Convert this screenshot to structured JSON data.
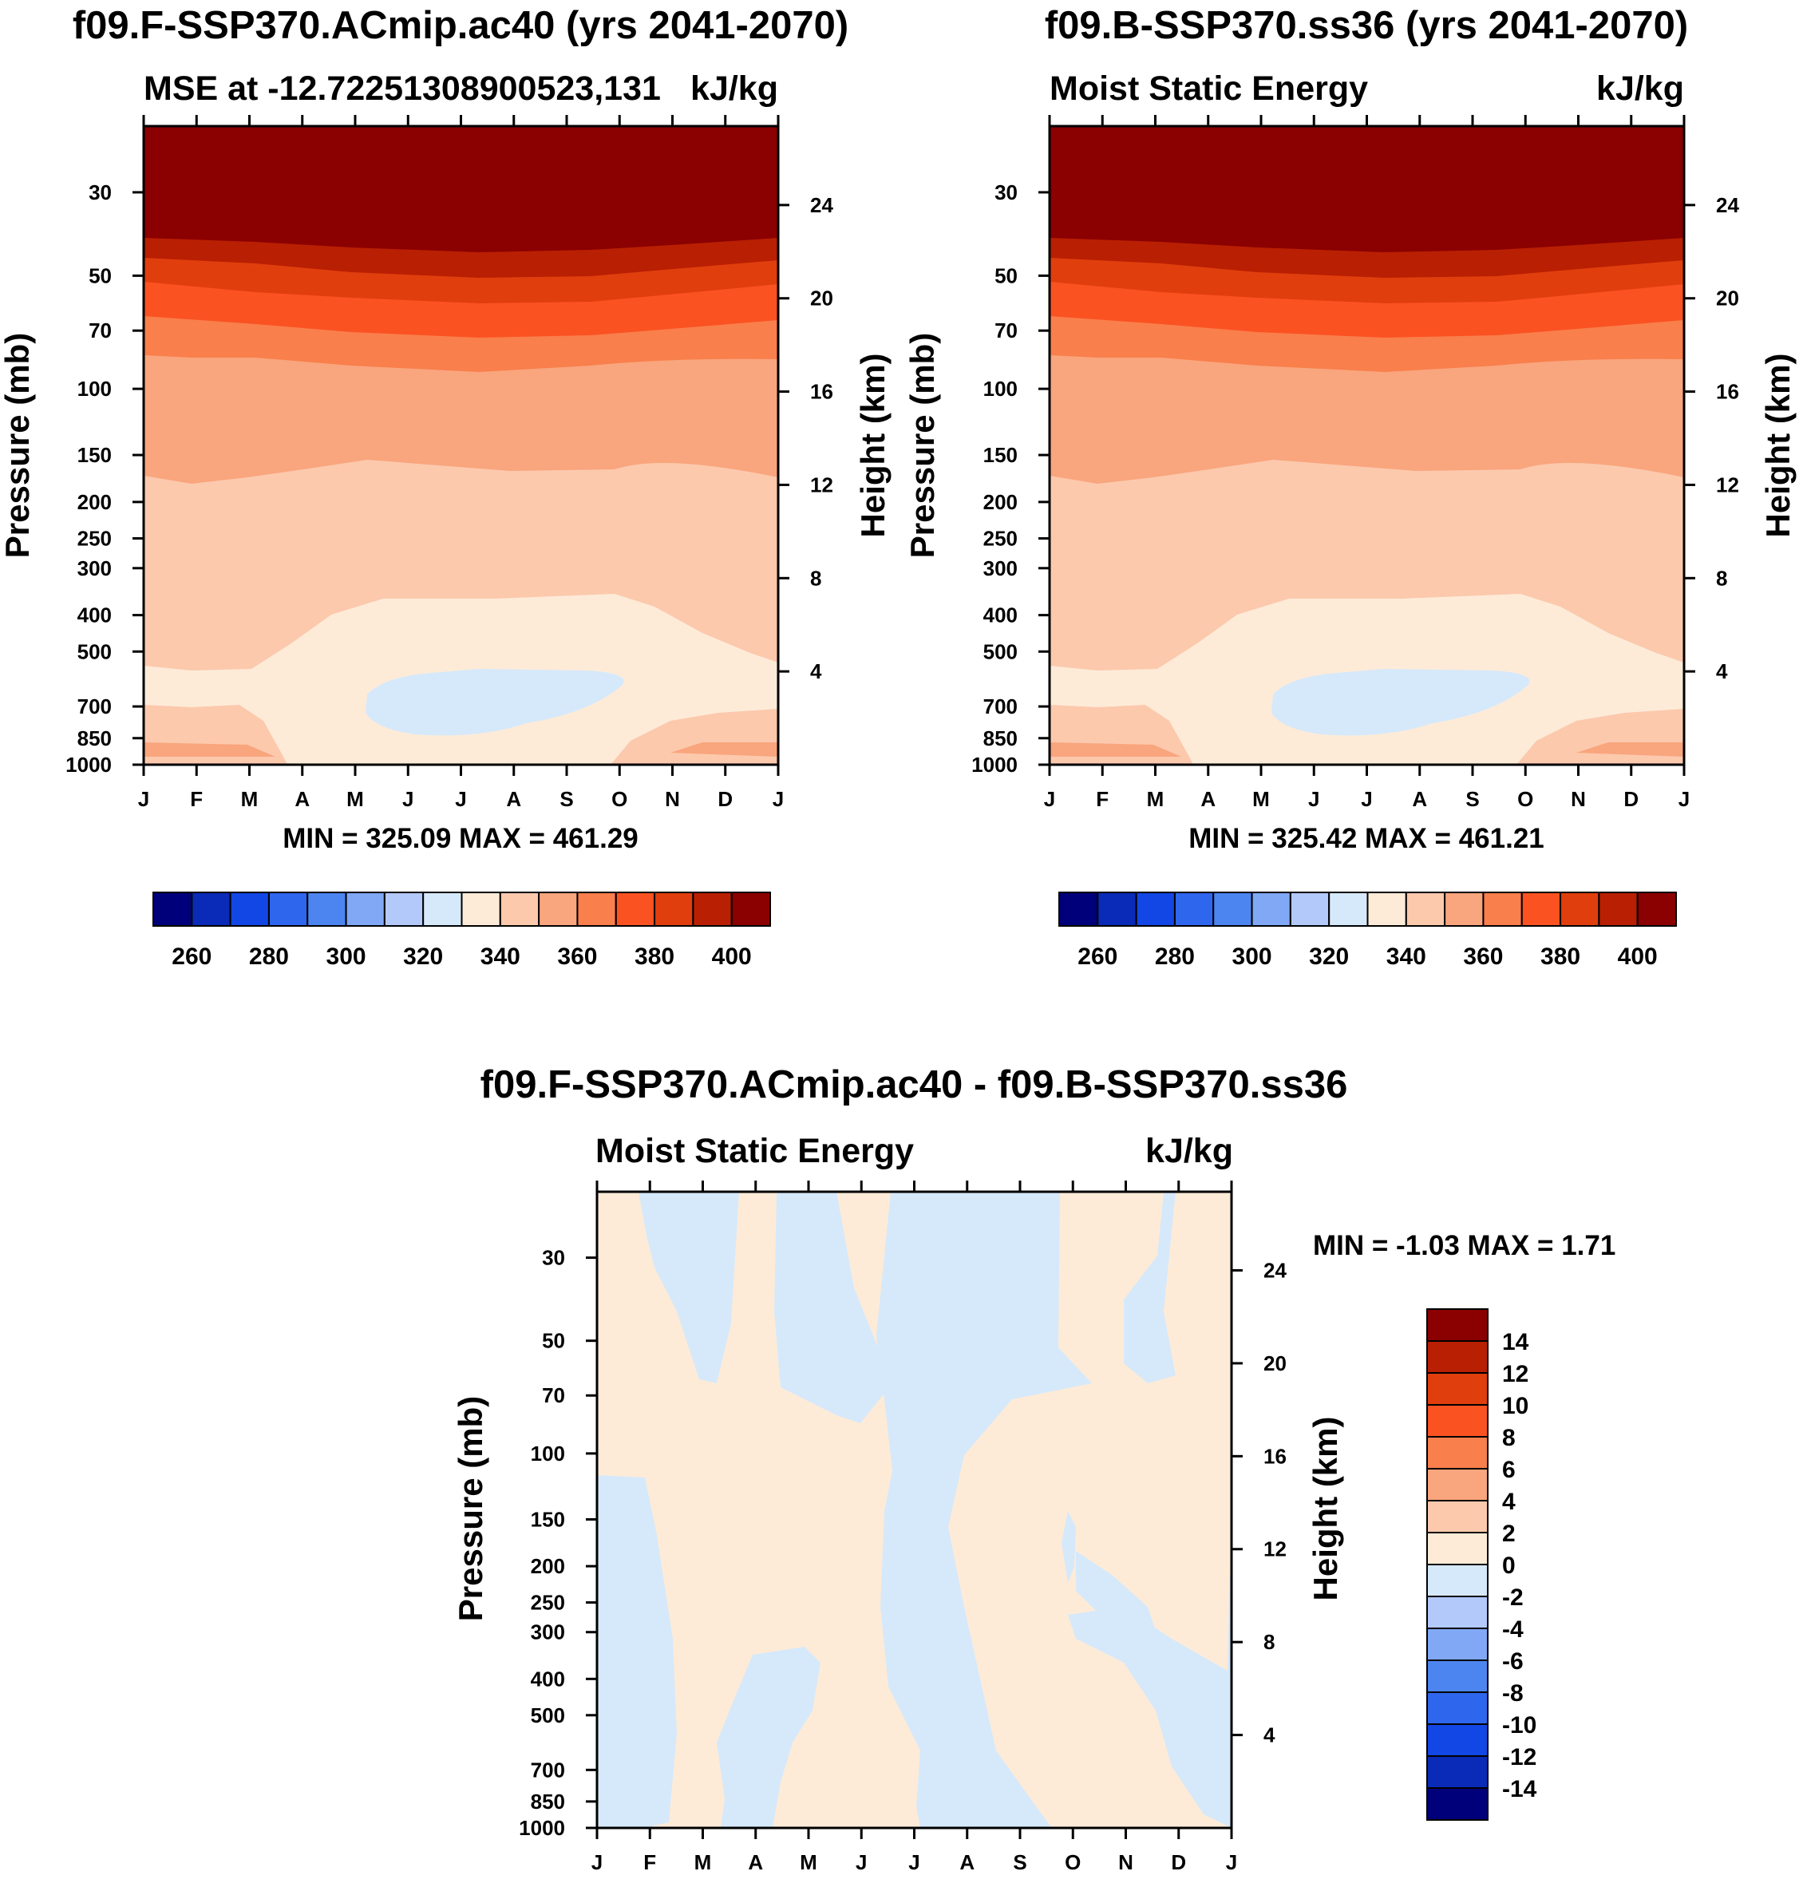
{
  "figure": {
    "panel_top_left": {
      "main_title": "f09.F-SSP370.ACmip.ac40 (yrs 2041-2070)",
      "left_subtitle": "MSE at -12.72251308900523,131",
      "right_subtitle": "kJ/kg",
      "minmax": "MIN = 325.09 MAX = 461.29"
    },
    "panel_top_right": {
      "main_title": "f09.B-SSP370.ss36 (yrs 2041-2070)",
      "left_subtitle": "Moist Static Energy",
      "right_subtitle": "kJ/kg",
      "minmax": "MIN = 325.42 MAX = 461.21"
    },
    "panel_bottom": {
      "main_title": "f09.F-SSP370.ACmip.ac40 - f09.B-SSP370.ss36",
      "left_subtitle": "Moist Static Energy",
      "right_subtitle": "kJ/kg",
      "minmax": "MIN =  -1.03 MAX =   1.71"
    },
    "y_label_left": "Pressure (mb)",
    "y_label_right": "Height (km)",
    "months": [
      "J",
      "F",
      "M",
      "A",
      "M",
      "J",
      "J",
      "A",
      "S",
      "O",
      "N",
      "D",
      "J"
    ],
    "pressure_ticks": [
      "30",
      "50",
      "70",
      "100",
      "150",
      "200",
      "250",
      "300",
      "400",
      "500",
      "700",
      "850",
      "1000"
    ],
    "height_ticks": [
      "24",
      "20",
      "16",
      "12",
      "8",
      "4"
    ],
    "colorbar_horizontal": {
      "tick_labels": [
        "260",
        "280",
        "300",
        "320",
        "340",
        "360",
        "380",
        "400"
      ],
      "colors": [
        "#00007a",
        "#0a2bb8",
        "#1247e5",
        "#2f66ee",
        "#4d85f0",
        "#80a8f5",
        "#b2c9f9",
        "#d6e9fa",
        "#fdebd8",
        "#fcc9ad",
        "#f9a57d",
        "#f97f4c",
        "#fb5222",
        "#e13e0e",
        "#b91f02",
        "#8b0000"
      ]
    },
    "colorbar_vertical": {
      "tick_labels": [
        "14",
        "12",
        "10",
        "8",
        "6",
        "4",
        "2",
        "0",
        "-2",
        "-4",
        "-6",
        "-8",
        "-10",
        "-12",
        "-14"
      ],
      "colors": [
        "#8b0000",
        "#b91f02",
        "#e13e0e",
        "#fb5222",
        "#f97f4c",
        "#f9a57d",
        "#fcc9ad",
        "#fdebd8",
        "#d6e9fa",
        "#b2c9f9",
        "#80a8f5",
        "#4d85f0",
        "#2f66ee",
        "#1247e5",
        "#0a2bb8",
        "#00007a"
      ]
    }
  },
  "chart_data": [
    {
      "type": "contour",
      "title": "f09.F-SSP370.ACmip.ac40 (yrs 2041-2070)",
      "subtitle": "MSE at -12.72251308900523,131",
      "units": "kJ/kg",
      "x": [
        "J",
        "F",
        "M",
        "A",
        "M",
        "J",
        "J",
        "A",
        "S",
        "O",
        "N",
        "D",
        "J"
      ],
      "xlabel": "",
      "ylabel": "Pressure (mb)",
      "ylabel_right": "Height (km)",
      "y_pressure_mb": [
        30,
        50,
        70,
        100,
        150,
        200,
        250,
        300,
        400,
        500,
        700,
        850,
        1000
      ],
      "y_height_km": [
        24,
        20,
        16,
        12,
        8,
        4
      ],
      "contour_levels": [
        250,
        260,
        270,
        280,
        290,
        300,
        310,
        320,
        330,
        340,
        350,
        360,
        370,
        380,
        390,
        400,
        410
      ],
      "min": 325.09,
      "max": 461.29,
      "description_values": {
        "above_50mb": ">400",
        "50_100mb": "360-400",
        "100_200mb": "350-360",
        "200_500mb": "340-350",
        "500_850mb": "330-340",
        "midlevel_JJA": "320-330"
      }
    },
    {
      "type": "contour",
      "title": "f09.B-SSP370.ss36 (yrs 2041-2070)",
      "subtitle": "Moist Static Energy",
      "units": "kJ/kg",
      "x": [
        "J",
        "F",
        "M",
        "A",
        "M",
        "J",
        "J",
        "A",
        "S",
        "O",
        "N",
        "D",
        "J"
      ],
      "ylabel": "Pressure (mb)",
      "ylabel_right": "Height (km)",
      "y_pressure_mb": [
        30,
        50,
        70,
        100,
        150,
        200,
        250,
        300,
        400,
        500,
        700,
        850,
        1000
      ],
      "y_height_km": [
        24,
        20,
        16,
        12,
        8,
        4
      ],
      "contour_levels": [
        250,
        260,
        270,
        280,
        290,
        300,
        310,
        320,
        330,
        340,
        350,
        360,
        370,
        380,
        390,
        400,
        410
      ],
      "min": 325.42,
      "max": 461.21
    },
    {
      "type": "contour",
      "title": "f09.F-SSP370.ACmip.ac40 - f09.B-SSP370.ss36",
      "subtitle": "Moist Static Energy",
      "units": "kJ/kg",
      "x": [
        "J",
        "F",
        "M",
        "A",
        "M",
        "J",
        "J",
        "A",
        "S",
        "O",
        "N",
        "D",
        "J"
      ],
      "ylabel": "Pressure (mb)",
      "ylabel_right": "Height (km)",
      "y_pressure_mb": [
        30,
        50,
        70,
        100,
        150,
        200,
        250,
        300,
        400,
        500,
        700,
        850,
        1000
      ],
      "y_height_km": [
        24,
        20,
        16,
        12,
        8,
        4
      ],
      "contour_levels": [
        -14,
        -12,
        -10,
        -8,
        -6,
        -4,
        -2,
        0,
        2,
        4,
        6,
        8,
        10,
        12,
        14
      ],
      "min": -1.03,
      "max": 1.71
    }
  ]
}
